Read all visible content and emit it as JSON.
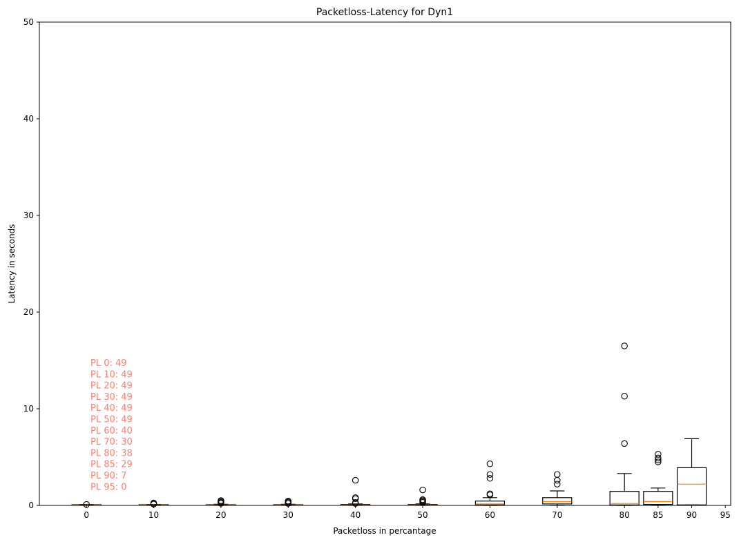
{
  "chart_data": {
    "type": "box",
    "title": "Packetloss-Latency for Dyn1",
    "xlabel": "Packetloss in percantage",
    "ylabel": "Latency in seconds",
    "ylim": [
      0,
      50
    ],
    "yticks": [
      0,
      10,
      20,
      30,
      40,
      50
    ],
    "xlim": [
      -7,
      95.8
    ],
    "xticks": [
      0,
      10,
      20,
      30,
      40,
      50,
      60,
      70,
      80,
      85,
      90,
      95
    ],
    "grid": false,
    "boxes": [
      {
        "x": 0,
        "q1": 0.02,
        "median": 0.05,
        "q3": 0.08,
        "whisker_low": 0.0,
        "whisker_high": 0.1,
        "outliers": [
          0.1
        ]
      },
      {
        "x": 10,
        "q1": 0.02,
        "median": 0.05,
        "q3": 0.08,
        "whisker_low": 0.0,
        "whisker_high": 0.1,
        "outliers": [
          0.12,
          0.2,
          0.25
        ]
      },
      {
        "x": 20,
        "q1": 0.02,
        "median": 0.05,
        "q3": 0.08,
        "whisker_low": 0.0,
        "whisker_high": 0.12,
        "outliers": [
          0.22,
          0.3,
          0.4,
          0.5
        ]
      },
      {
        "x": 30,
        "q1": 0.02,
        "median": 0.05,
        "q3": 0.08,
        "whisker_low": 0.0,
        "whisker_high": 0.12,
        "outliers": [
          0.2,
          0.3,
          0.4,
          0.45
        ]
      },
      {
        "x": 40,
        "q1": 0.02,
        "median": 0.05,
        "q3": 0.1,
        "whisker_low": 0.0,
        "whisker_high": 0.15,
        "outliers": [
          0.2,
          0.3,
          0.7,
          0.8,
          2.6
        ]
      },
      {
        "x": 50,
        "q1": 0.02,
        "median": 0.05,
        "q3": 0.1,
        "whisker_low": 0.0,
        "whisker_high": 0.15,
        "outliers": [
          0.3,
          0.4,
          0.5,
          0.6,
          1.6
        ]
      },
      {
        "x": 60,
        "q1": 0.05,
        "median": 0.15,
        "q3": 0.45,
        "whisker_low": 0.0,
        "whisker_high": 0.8,
        "outliers": [
          1.1,
          1.2,
          2.8,
          3.2,
          4.3
        ]
      },
      {
        "x": 70,
        "q1": 0.15,
        "median": 0.4,
        "q3": 0.8,
        "whisker_low": 0.0,
        "whisker_high": 1.5,
        "outliers": [
          2.2,
          2.6,
          3.2
        ]
      },
      {
        "x": 80,
        "q1": 0.05,
        "median": 0.2,
        "q3": 1.45,
        "whisker_low": 0.0,
        "whisker_high": 3.3,
        "outliers": [
          6.4,
          11.3,
          16.5
        ]
      },
      {
        "x": 85,
        "q1": 0.1,
        "median": 0.4,
        "q3": 1.45,
        "whisker_low": 0.0,
        "whisker_high": 1.8,
        "outliers": [
          4.5,
          4.7,
          4.9,
          5.3
        ]
      },
      {
        "x": 90,
        "q1": 0.05,
        "median": 2.2,
        "q3": 3.9,
        "whisker_low": 0.05,
        "whisker_high": 6.9,
        "outliers": []
      }
    ],
    "colors": {
      "box": "#000000",
      "median": "#ff7f0e",
      "annotation": "#fa8072"
    },
    "annotations": [
      "PL 0: 49",
      "PL 10: 49",
      "PL 20: 49",
      "PL 30: 49",
      "PL 40: 49",
      "PL 50: 49",
      "PL 60: 40",
      "PL 70: 30",
      "PL 80: 38",
      "PL 85: 29",
      "PL 90: 7",
      "PL 95: 0"
    ]
  }
}
